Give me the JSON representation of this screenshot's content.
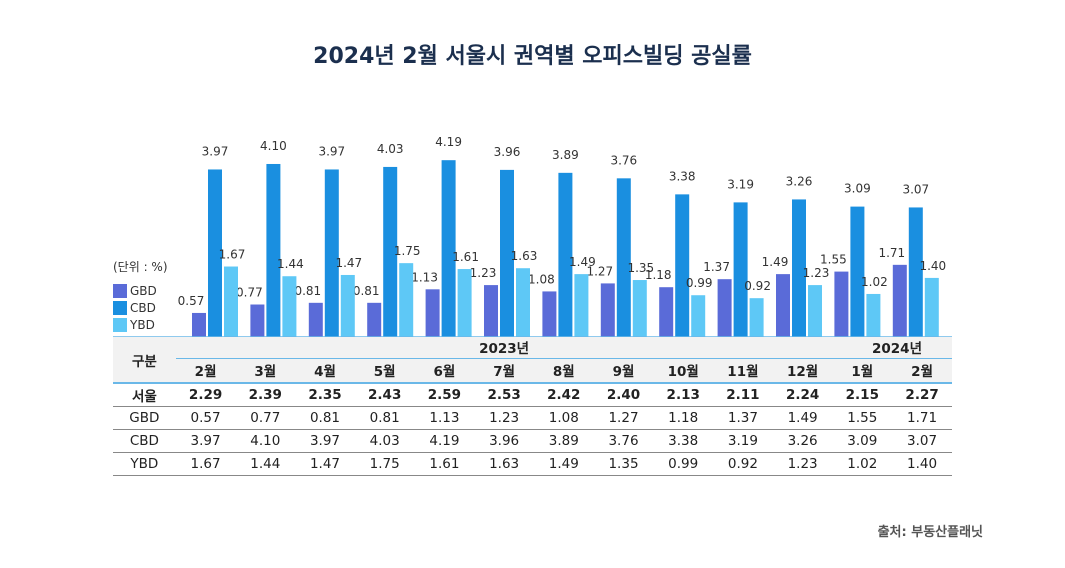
{
  "chart_data": {
    "type": "bar",
    "title": "2024년 2월 서울시 권역별 오피스빌딩 공실률",
    "unit_label": "(단위 : %)",
    "categories": [
      "2월",
      "3월",
      "4월",
      "5월",
      "6월",
      "7월",
      "8월",
      "9월",
      "10월",
      "11월",
      "12월",
      "1월",
      "2월"
    ],
    "year_groups": [
      {
        "label": "2023년",
        "span": 11
      },
      {
        "label": "2024년",
        "span": 2
      }
    ],
    "ylim": [
      0,
      4.5
    ],
    "grid": false,
    "legend_placement": "left",
    "series": [
      {
        "name": "GBD",
        "color": "#5a6bd8",
        "values": [
          0.57,
          0.77,
          0.81,
          0.81,
          1.13,
          1.23,
          1.08,
          1.27,
          1.18,
          1.37,
          1.49,
          1.55,
          1.71
        ]
      },
      {
        "name": "CBD",
        "color": "#1a8fe0",
        "values": [
          3.97,
          4.1,
          3.97,
          4.03,
          4.19,
          3.96,
          3.89,
          3.76,
          3.38,
          3.19,
          3.26,
          3.09,
          3.07
        ]
      },
      {
        "name": "YBD",
        "color": "#5ec8f6",
        "values": [
          1.67,
          1.44,
          1.47,
          1.75,
          1.61,
          1.63,
          1.49,
          1.35,
          0.99,
          0.92,
          1.23,
          1.02,
          1.4
        ]
      }
    ],
    "table": {
      "corner": "구분",
      "rows": [
        {
          "label": "서울",
          "values": [
            "2.29",
            "2.39",
            "2.35",
            "2.43",
            "2.59",
            "2.53",
            "2.42",
            "2.40",
            "2.13",
            "2.11",
            "2.24",
            "2.15",
            "2.27"
          ]
        },
        {
          "label": "GBD",
          "values": [
            "0.57",
            "0.77",
            "0.81",
            "0.81",
            "1.13",
            "1.23",
            "1.08",
            "1.27",
            "1.18",
            "1.37",
            "1.49",
            "1.55",
            "1.71"
          ]
        },
        {
          "label": "CBD",
          "values": [
            "3.97",
            "4.10",
            "3.97",
            "4.03",
            "4.19",
            "3.96",
            "3.89",
            "3.76",
            "3.38",
            "3.19",
            "3.26",
            "3.09",
            "3.07"
          ]
        },
        {
          "label": "YBD",
          "values": [
            "1.67",
            "1.44",
            "1.47",
            "1.75",
            "1.61",
            "1.63",
            "1.49",
            "1.35",
            "0.99",
            "0.92",
            "1.23",
            "1.02",
            "1.40"
          ]
        }
      ]
    }
  },
  "source": "출처: 부동산플래닛"
}
